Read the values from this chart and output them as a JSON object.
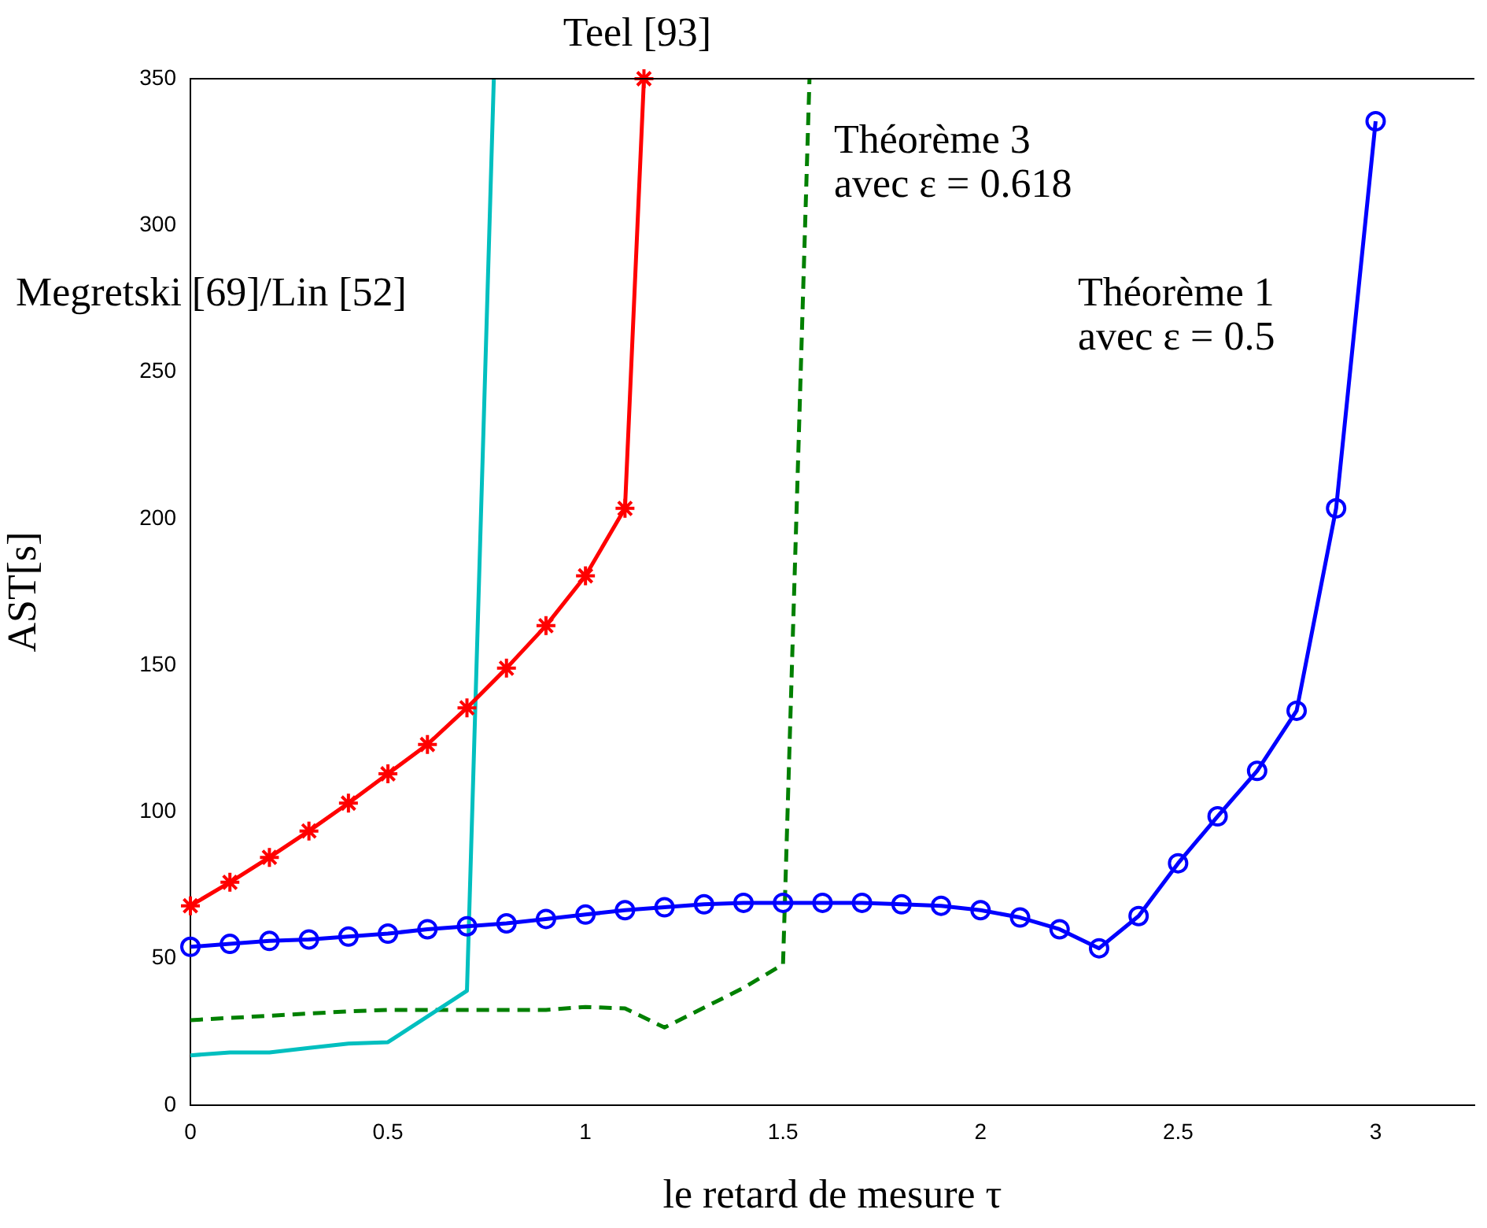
{
  "chart_data": {
    "type": "line",
    "xlabel": "le retard de mesure τ",
    "ylabel": "AST[s]",
    "xlim": [
      0,
      3.25
    ],
    "ylim": [
      0,
      350
    ],
    "xticks": [
      0,
      0.5,
      1,
      1.5,
      2,
      2.5,
      3
    ],
    "yticks": [
      0,
      50,
      100,
      150,
      200,
      250,
      300,
      350
    ],
    "grid": false,
    "legend": false,
    "annotations": [
      "Teel [93]",
      "Megretski [69]/Lin [52]",
      "Théorème 3\navec ε = 0.618",
      "Théorème 1\navec ε = 0.5"
    ],
    "series": [
      {
        "color": "#0000ff",
        "marker": "circle",
        "line_style": "solid",
        "x": [
          0,
          0.1,
          0.2,
          0.3,
          0.4,
          0.5,
          0.6,
          0.7,
          0.8,
          0.9,
          1.0,
          1.1,
          1.2,
          1.3,
          1.4,
          1.5,
          1.6,
          1.7,
          1.8,
          1.9,
          2.0,
          2.1,
          2.2,
          2.3,
          2.4,
          2.5,
          2.6,
          2.7,
          2.8,
          2.9,
          3.0
        ],
        "values": [
          54,
          55,
          56,
          56.5,
          57.5,
          58.5,
          60,
          61,
          62,
          63.5,
          65,
          66.5,
          67.5,
          68.5,
          69,
          69,
          69,
          69,
          68.5,
          68,
          66.5,
          64,
          60,
          53.5,
          64.5,
          82.5,
          98.5,
          114,
          134.5,
          203.5,
          335.5
        ]
      },
      {
        "color": "#ff0000",
        "marker": "cross",
        "line_style": "solid",
        "x": [
          0,
          0.1,
          0.2,
          0.3,
          0.4,
          0.5,
          0.6,
          0.7,
          0.8,
          0.9,
          1.0,
          1.1,
          1.148
        ],
        "values": [
          68,
          76,
          84.5,
          93.5,
          103,
          113,
          123,
          135.5,
          149,
          163.5,
          180.5,
          203.5,
          350
        ]
      },
      {
        "color": "#00bfbf",
        "marker": "none",
        "line_style": "solid",
        "x": [
          0,
          0.1,
          0.2,
          0.3,
          0.4,
          0.5,
          0.7,
          0.768
        ],
        "values": [
          17,
          18,
          18,
          19.5,
          21,
          21.5,
          39,
          350
        ]
      },
      {
        "color": "#008000",
        "marker": "none",
        "line_style": "dashed",
        "x": [
          0,
          0.4,
          0.5,
          0.9,
          1.0,
          1.1,
          1.2,
          1.4,
          1.5,
          1.567
        ],
        "values": [
          29,
          32,
          32.5,
          32.5,
          33.5,
          33,
          26.5,
          40,
          48,
          350
        ]
      }
    ]
  }
}
